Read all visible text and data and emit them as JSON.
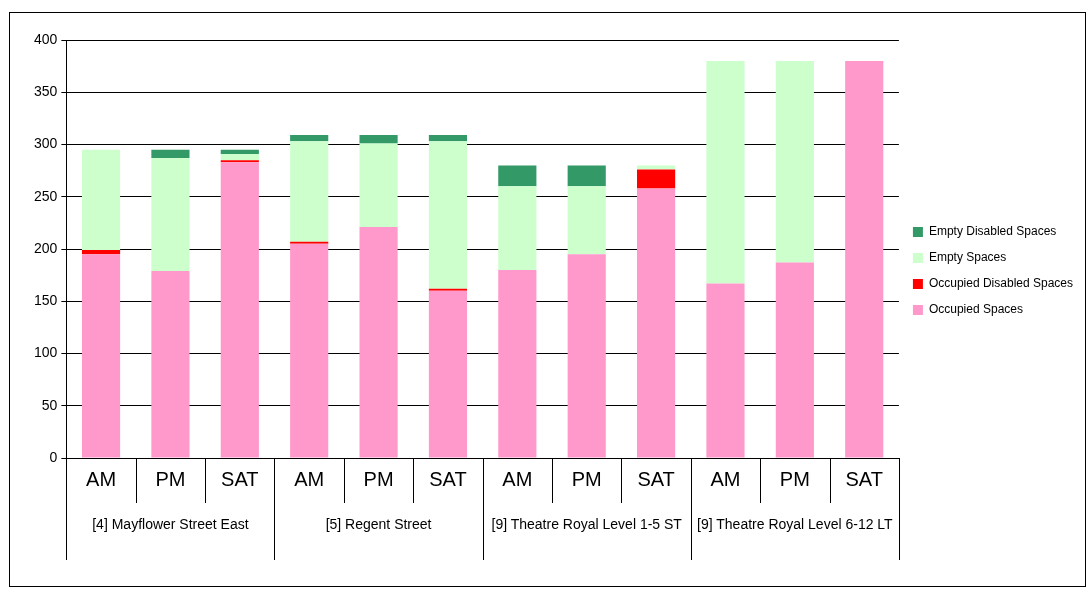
{
  "chart_data": {
    "type": "bar",
    "stacked": true,
    "categories": [
      "AM",
      "PM",
      "SAT",
      "AM",
      "PM",
      "SAT",
      "AM",
      "PM",
      "SAT",
      "AM",
      "PM",
      "SAT"
    ],
    "series": [
      {
        "name": "Occupied Spaces",
        "color": "#ff99cc",
        "values": [
          195,
          179,
          283,
          205,
          221,
          160,
          180,
          195,
          258,
          167,
          187,
          380
        ]
      },
      {
        "name": "Occupied Disabled Spaces",
        "color": "#ff0000",
        "values": [
          4,
          0,
          2,
          2,
          0,
          2,
          0,
          0,
          18,
          0,
          0,
          0
        ]
      },
      {
        "name": "Empty Spaces",
        "color": "#ccffcc",
        "values": [
          96,
          108,
          6,
          96,
          80,
          141,
          80,
          65,
          4,
          213,
          193,
          0
        ]
      },
      {
        "name": "Empty Disabled Spaces",
        "color": "#339966",
        "values": [
          0,
          8,
          4,
          6,
          8,
          6,
          20,
          20,
          0,
          0,
          0,
          0
        ]
      }
    ],
    "ylim": [
      0,
      400
    ],
    "yticks": [
      0,
      50,
      100,
      150,
      200,
      250,
      300,
      350,
      400
    ],
    "grid": "y",
    "legend": "right",
    "annotations": [
      "[4] Mayflower Street East",
      "[5] Regent Street",
      "[9] Theatre Royal Level 1-5 ST",
      "[9] Theatre Royal Level 6-12 LT"
    ]
  }
}
